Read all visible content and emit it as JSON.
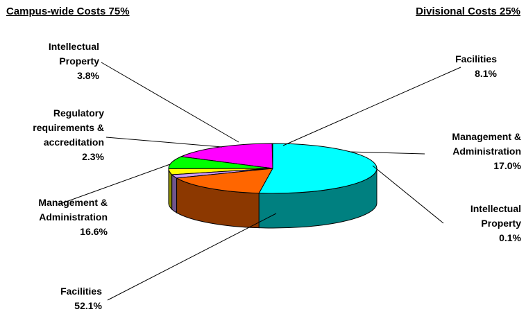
{
  "headings": {
    "left": "Campus-wide Costs 75%",
    "right": "Divisional Costs 25%"
  },
  "chart_data": {
    "type": "pie",
    "title": "",
    "slices": [
      {
        "group": "Divisional",
        "lines": [
          "Intellectual",
          "Property"
        ],
        "value": 0.1,
        "value_label": "0.1%",
        "color": "#CC99FF"
      },
      {
        "group": "Divisional",
        "lines": [
          "Management &",
          "Administration"
        ],
        "value": 17.0,
        "value_label": "17.0%",
        "color": "#FF00FF"
      },
      {
        "group": "Divisional",
        "lines": [
          "Facilities"
        ],
        "value": 8.1,
        "value_label": "8.1%",
        "color": "#00FF00"
      },
      {
        "group": "Campus-wide",
        "lines": [
          "Intellectual",
          "Property"
        ],
        "value": 3.8,
        "value_label": "3.8%",
        "color": "#FFFF00"
      },
      {
        "group": "Campus-wide",
        "lines": [
          "Regulatory",
          "requirements &",
          "accreditation"
        ],
        "value": 2.3,
        "value_label": "2.3%",
        "color": "#CC99FF"
      },
      {
        "group": "Campus-wide",
        "lines": [
          "Management &",
          "Administration"
        ],
        "value": 16.6,
        "value_label": "16.6%",
        "color": "#FF6600"
      },
      {
        "group": "Campus-wide",
        "lines": [
          "Facilities"
        ],
        "value": 52.1,
        "value_label": "52.1%",
        "color": "#00FFFF"
      }
    ],
    "side_color": "#008080",
    "legend": "none"
  }
}
